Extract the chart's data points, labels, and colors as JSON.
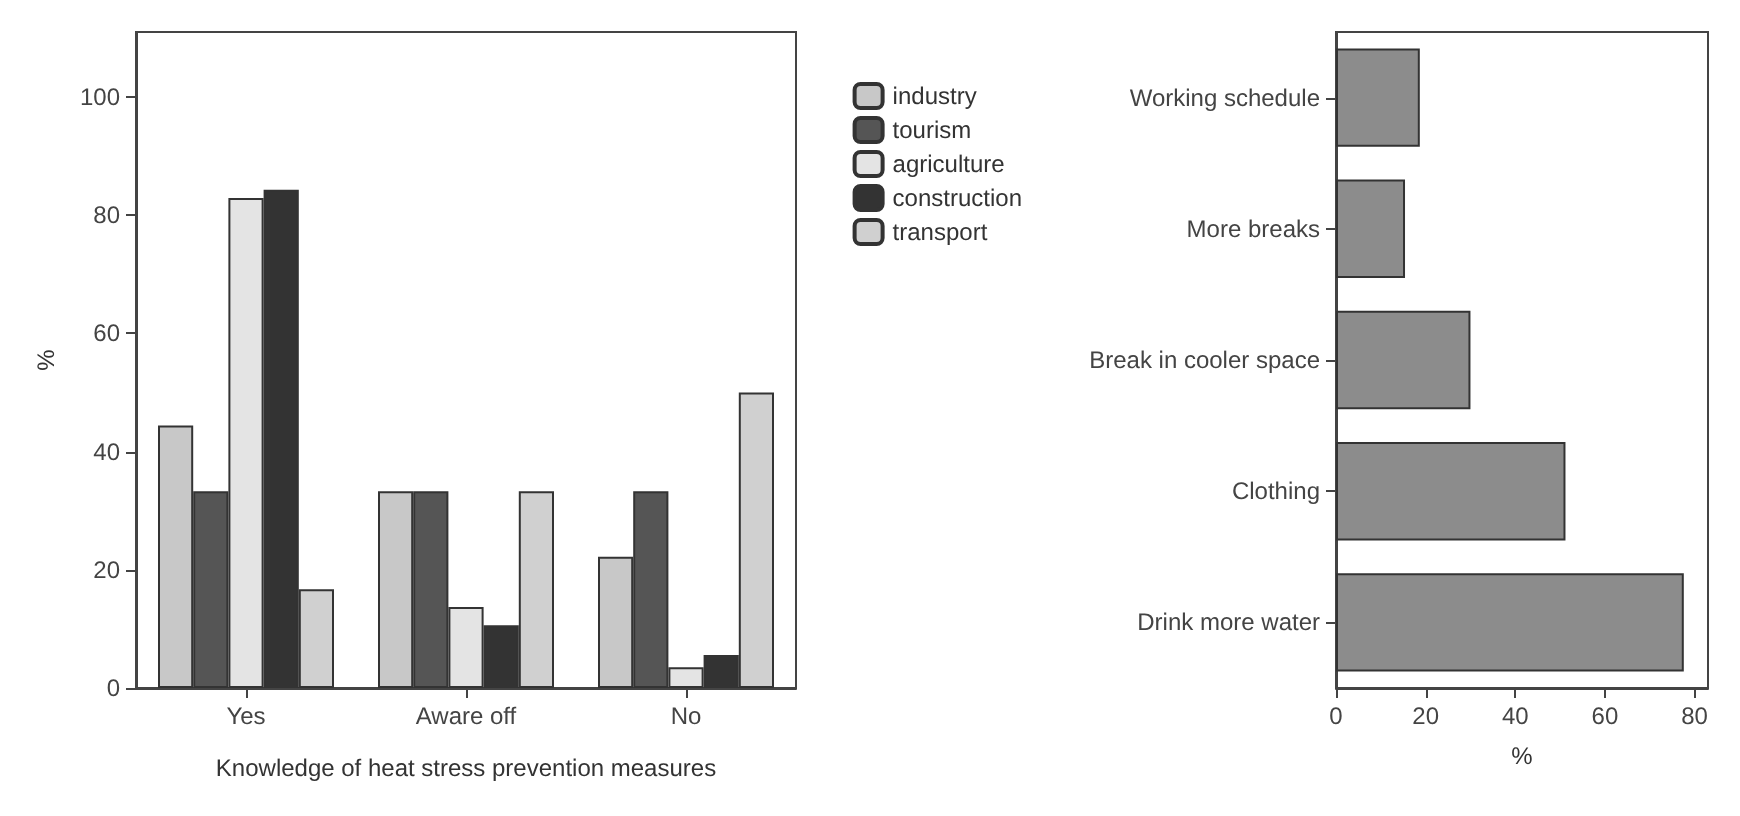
{
  "chart_data": [
    {
      "type": "bar",
      "xlabel": "Knowledge of heat stress prevention measures",
      "ylabel": "%",
      "categories": [
        "Yes",
        "Aware off",
        "No"
      ],
      "series": [
        {
          "name": "industry",
          "color": "#c8c8c8",
          "values": [
            44.4,
            33.3,
            22.2
          ]
        },
        {
          "name": "tourism",
          "color": "#555555",
          "values": [
            33.3,
            33.3,
            33.3
          ]
        },
        {
          "name": "agriculture",
          "color": "#e4e4e4",
          "values": [
            82.9,
            13.7,
            3.5
          ]
        },
        {
          "name": "construction",
          "color": "#333333",
          "values": [
            84.3,
            10.6,
            5.6
          ]
        },
        {
          "name": "transport",
          "color": "#d0d0d0",
          "values": [
            16.7,
            33.3,
            50
          ]
        }
      ],
      "ylim": [
        0,
        111
      ],
      "yticks": [
        0,
        20,
        40,
        60,
        80,
        100
      ],
      "grid": false,
      "legend": "top right"
    },
    {
      "type": "bar",
      "orientation": "horizontal",
      "xlabel": "%",
      "categories": [
        "Working schedule",
        "More breaks",
        "Break in cooler space",
        "Clothing",
        "Drink more water"
      ],
      "values": [
        18.7,
        15.4,
        30,
        51.2,
        77.6
      ],
      "color": "#8c8c8c",
      "xlim": [
        0,
        83
      ],
      "xticks": [
        0,
        20,
        40,
        60,
        80
      ],
      "grid": false
    }
  ]
}
